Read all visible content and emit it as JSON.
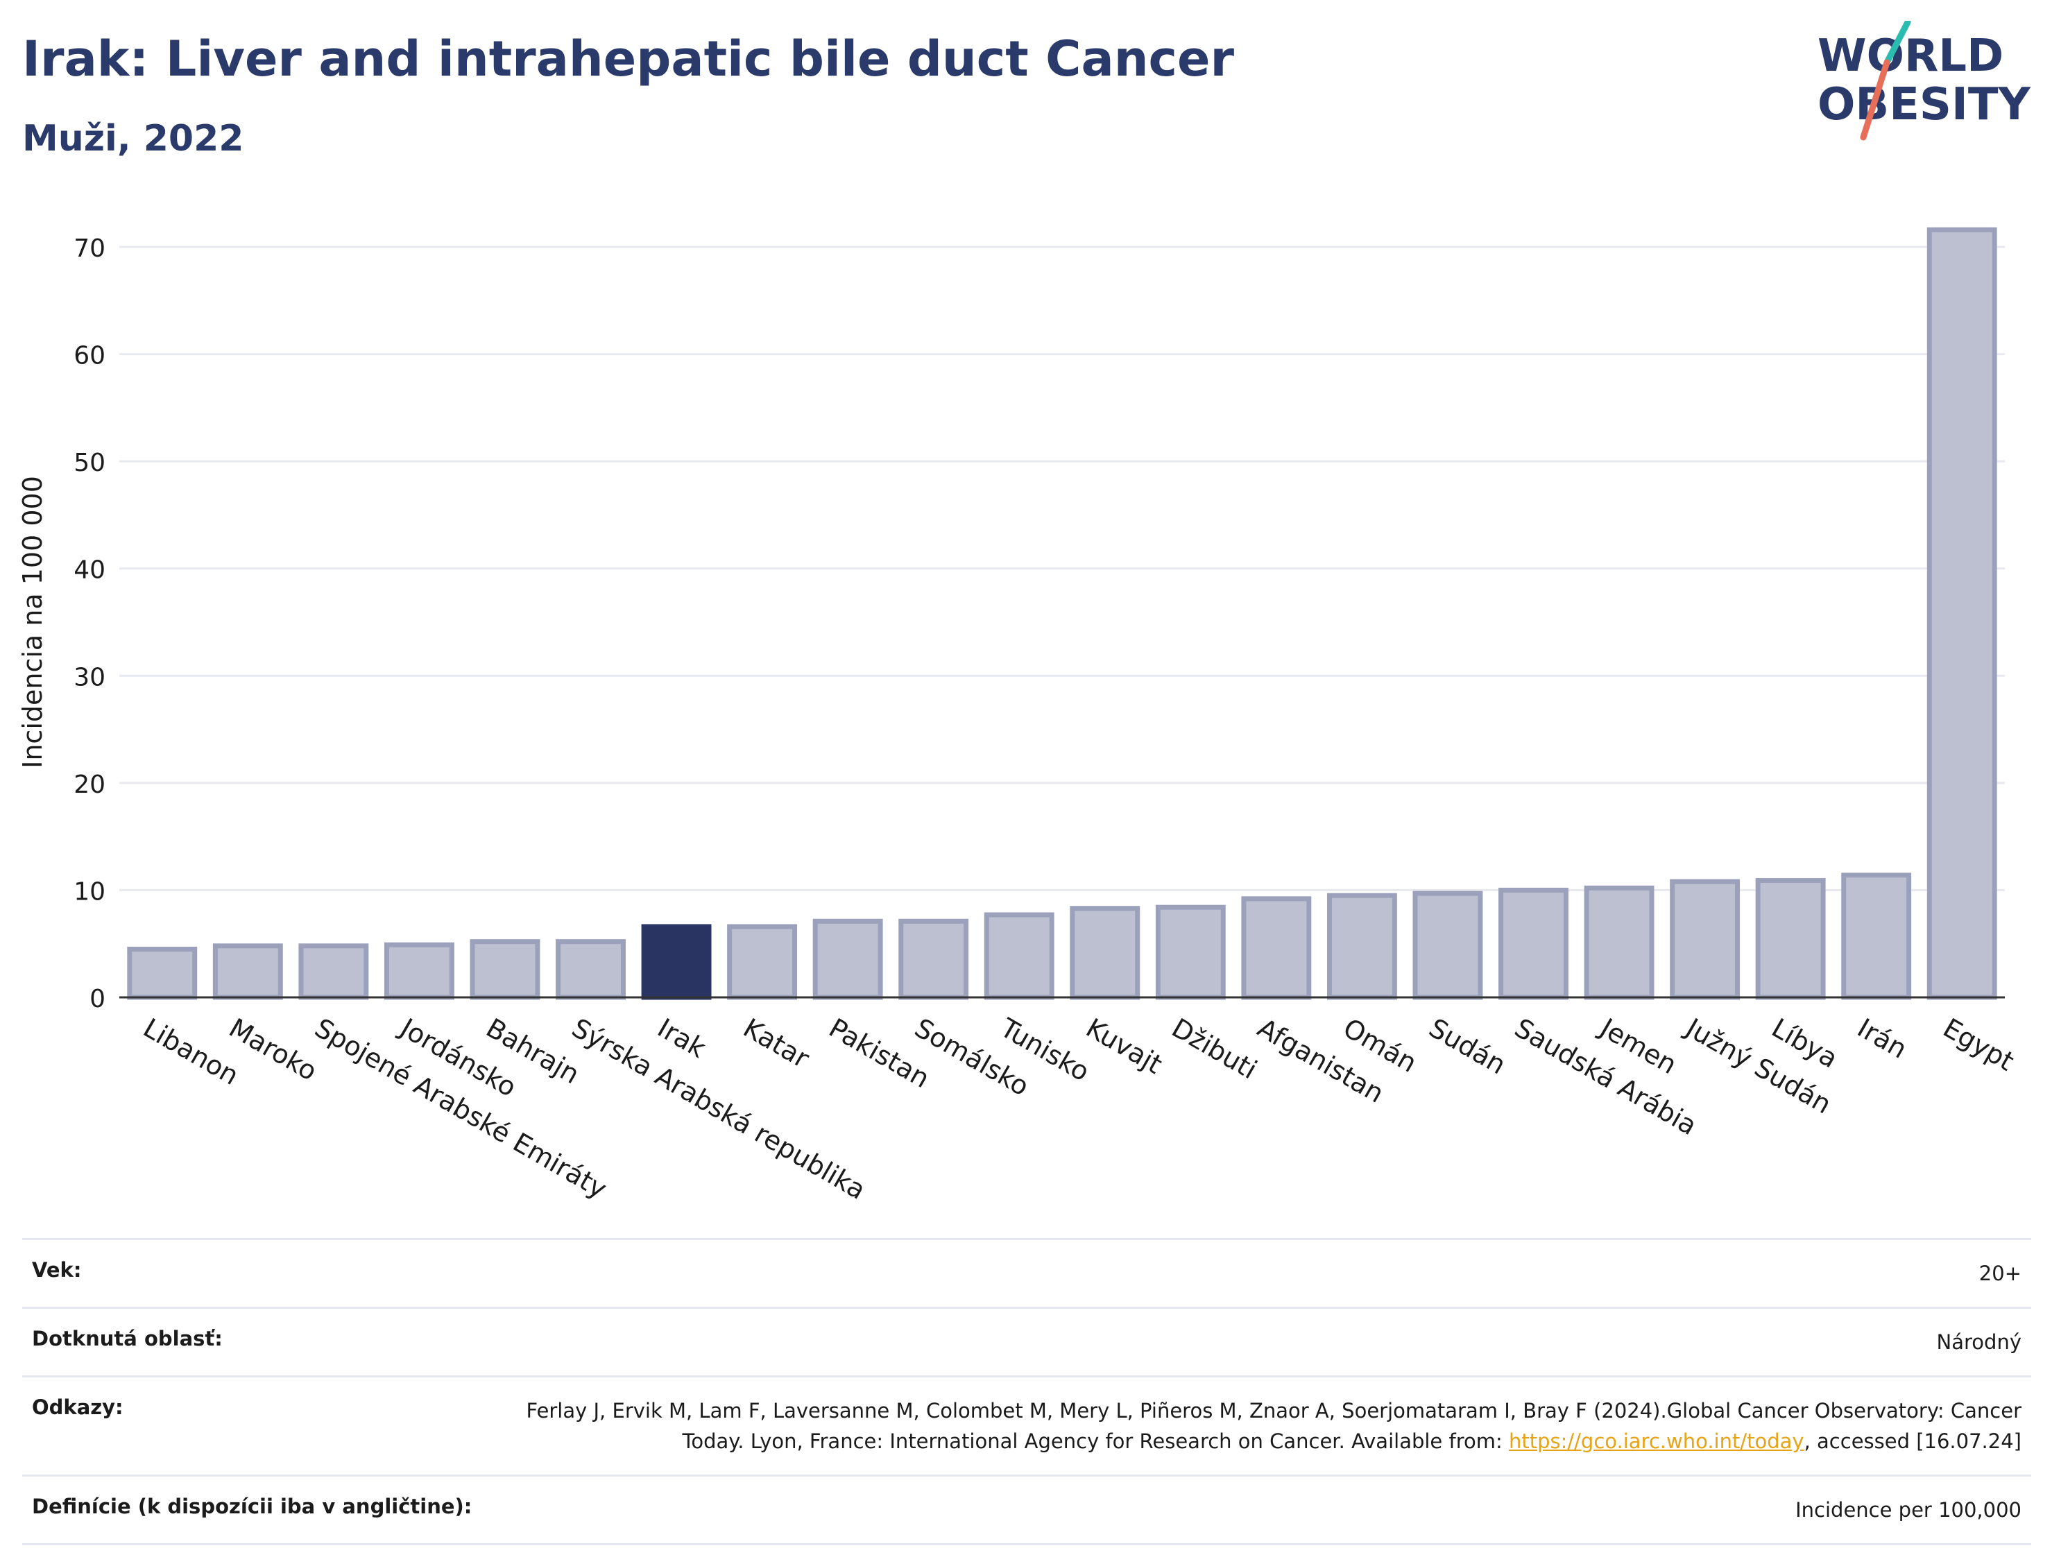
{
  "header": {
    "title": "Irak: Liver and intrahepatic bile duct Cancer",
    "subtitle": "Muži, 2022"
  },
  "logo": {
    "line1": "WORLD",
    "line2": "OBESITY"
  },
  "colors": {
    "highlight": "#293462",
    "bar": "#bcc0d0",
    "bar_edge": "#9ba1bb",
    "grid": "#e7e9ef",
    "title": "#2a3a6a",
    "logo_teal": "#2bbcb0",
    "logo_coral": "#e76f5a",
    "link": "#e8a317"
  },
  "chart_data": {
    "type": "bar",
    "ylabel": "Incidencia na 100 000",
    "ylim": [
      0,
      72
    ],
    "yticks": [
      0,
      10,
      20,
      30,
      40,
      50,
      60,
      70
    ],
    "grid": true,
    "categories": [
      "Libanon",
      "Maroko",
      "Spojené Arabské Emiráty",
      "Jordánsko",
      "Bahrajn",
      "Sýrska Arabská republika",
      "Irak",
      "Katar",
      "Pakistan",
      "Somálsko",
      "Tunisko",
      "Kuvajt",
      "Džibuti",
      "Afganistan",
      "Omán",
      "Sudán",
      "Saudská Arábia",
      "Jemen",
      "Južný Sudán",
      "Líbya",
      "Irán",
      "Egypt"
    ],
    "values": [
      4.5,
      4.8,
      4.8,
      4.9,
      5.2,
      5.2,
      6.6,
      6.6,
      7.1,
      7.1,
      7.7,
      8.3,
      8.4,
      9.2,
      9.5,
      9.7,
      10.0,
      10.2,
      10.8,
      10.9,
      11.4,
      71.6
    ],
    "highlight": "Irak"
  },
  "meta": {
    "age_label": "Vek:",
    "age_value": "20+",
    "area_label": "Dotknutá oblasť:",
    "area_value": "Národný",
    "ref_label": "Odkazy:",
    "ref_text_1": "Ferlay J, Ervik M, Lam F, Laversanne M, Colombet M, Mery L, Piñeros M, Znaor A, Soerjomataram I, Bray F (2024).Global Cancer Observatory: Cancer Today. Lyon, France: International Agency for Research on Cancer. Available from: ",
    "ref_link": "https://gco.iarc.who.int/today",
    "ref_text_2": ", accessed [16.07.24]",
    "def_label": "Definície (k dispozícii iba v angličtine):",
    "def_value": "Incidence per 100,000"
  }
}
